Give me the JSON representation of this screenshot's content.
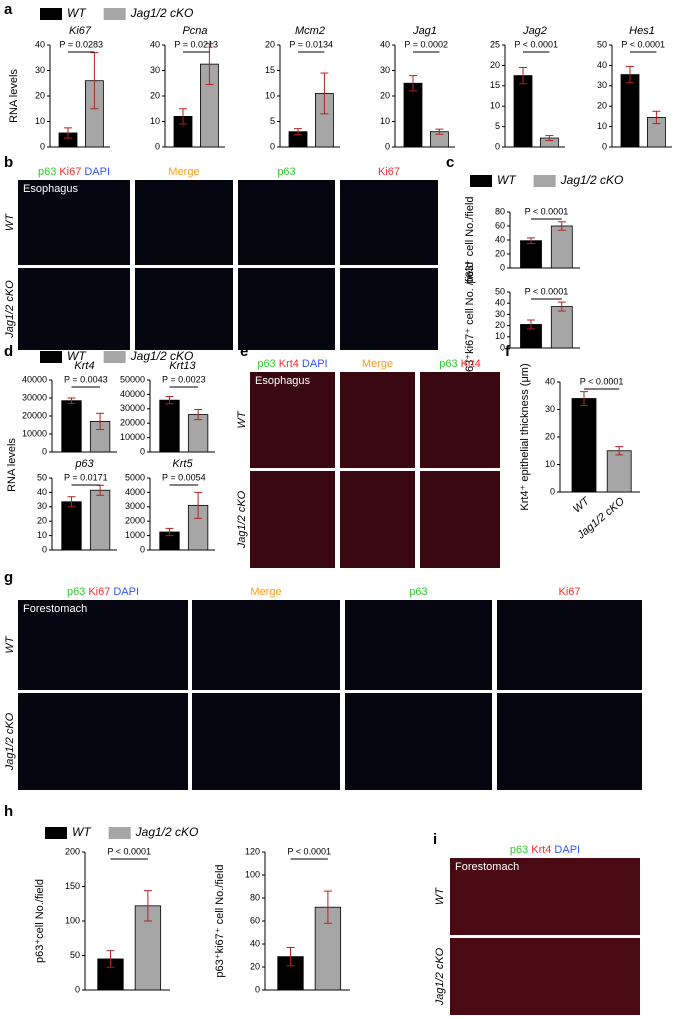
{
  "panel_labels": [
    "a",
    "b",
    "c",
    "d",
    "e",
    "f",
    "g",
    "h",
    "i"
  ],
  "legend": [
    {
      "name": "WT",
      "color": "#000000"
    },
    {
      "name": "Jag1/2 cKO",
      "color": "#a6a6a6"
    }
  ],
  "chart_data": [
    {
      "type": "bar",
      "title": "Ki67",
      "ylabel": "RNA levels",
      "values": [
        5.5,
        26
      ],
      "errors": [
        2,
        11
      ],
      "ylim": [
        0,
        40
      ],
      "yticks": [
        0,
        10,
        20,
        30,
        40
      ],
      "annotation": "P = 0.0283"
    },
    {
      "type": "bar",
      "title": "Pcna",
      "values": [
        12,
        32.5
      ],
      "errors": [
        3,
        8
      ],
      "ylim": [
        0,
        40
      ],
      "yticks": [
        0,
        10,
        20,
        30,
        40
      ],
      "annotation": "P = 0.0213"
    },
    {
      "type": "bar",
      "title": "Mcm2",
      "values": [
        3,
        10.5
      ],
      "errors": [
        0.6,
        4
      ],
      "ylim": [
        0,
        20
      ],
      "yticks": [
        0,
        5,
        10,
        15,
        20
      ],
      "annotation": "P = 0.0134"
    },
    {
      "type": "bar",
      "title": "Jag1",
      "values": [
        25,
        6
      ],
      "errors": [
        3,
        1
      ],
      "ylim": [
        0,
        40
      ],
      "yticks": [
        0,
        10,
        20,
        30,
        40
      ],
      "annotation": "P = 0.0002"
    },
    {
      "type": "bar",
      "title": "Jag2",
      "values": [
        17.5,
        2.2
      ],
      "errors": [
        2,
        0.6
      ],
      "ylim": [
        0,
        25
      ],
      "yticks": [
        0,
        5,
        10,
        15,
        20,
        25
      ],
      "annotation": "P < 0.0001"
    },
    {
      "type": "bar",
      "title": "Hes1",
      "values": [
        35.5,
        14.5
      ],
      "errors": [
        4,
        3
      ],
      "ylim": [
        0,
        50
      ],
      "yticks": [
        0,
        10,
        20,
        30,
        40,
        50
      ],
      "annotation": "P < 0.0001"
    },
    {
      "type": "bar",
      "ylabel": "p63⁺ cell No./field",
      "values": [
        39,
        60
      ],
      "errors": [
        4,
        6
      ],
      "ylim": [
        0,
        80
      ],
      "yticks": [
        0,
        20,
        40,
        60,
        80
      ],
      "annotation": "P < 0.0001"
    },
    {
      "type": "bar",
      "ylabel": "p63⁺ki67⁺ cell No. /field",
      "values": [
        21,
        37
      ],
      "errors": [
        4,
        4
      ],
      "ylim": [
        0,
        50
      ],
      "yticks": [
        0,
        10,
        20,
        30,
        40,
        50
      ],
      "annotation": "P < 0.0001"
    },
    {
      "type": "bar",
      "title": "Krt4",
      "ylabel": "RNA levels",
      "values": [
        28500,
        17000
      ],
      "errors": [
        1500,
        4500
      ],
      "ylim": [
        0,
        40000
      ],
      "yticks": [
        0,
        10000,
        20000,
        30000,
        40000
      ],
      "annotation": "P = 0.0043"
    },
    {
      "type": "bar",
      "title": "Krt13",
      "values": [
        36000,
        26000
      ],
      "errors": [
        2500,
        3500
      ],
      "ylim": [
        0,
        50000
      ],
      "yticks": [
        0,
        10000,
        20000,
        30000,
        40000,
        50000
      ],
      "annotation": "P = 0.0023"
    },
    {
      "type": "bar",
      "title": "p63",
      "values": [
        33.5,
        41.5
      ],
      "errors": [
        3.5,
        3.5
      ],
      "ylim": [
        0,
        50
      ],
      "yticks": [
        0,
        10,
        20,
        30,
        40,
        50
      ],
      "annotation": "P = 0.0171"
    },
    {
      "type": "bar",
      "title": "Krt5",
      "values": [
        1250,
        3100
      ],
      "errors": [
        250,
        900
      ],
      "ylim": [
        0,
        5000
      ],
      "yticks": [
        0,
        1000,
        2000,
        3000,
        4000,
        5000
      ],
      "annotation": "P = 0.0054"
    },
    {
      "type": "bar",
      "ylabel": "Krt4⁺ epithelial thickness (μm)",
      "categories": [
        "WT",
        "Jag1/2 cKO"
      ],
      "values": [
        34,
        15
      ],
      "errors": [
        2.5,
        1.5
      ],
      "ylim": [
        0,
        40
      ],
      "yticks": [
        0,
        10,
        20,
        30,
        40
      ],
      "annotation": "P < 0.0001"
    },
    {
      "type": "bar",
      "ylabel": "p63⁺cell No./field",
      "values": [
        45,
        122
      ],
      "errors": [
        12,
        22
      ],
      "ylim": [
        0,
        200
      ],
      "yticks": [
        0,
        50,
        100,
        150,
        200
      ],
      "annotation": "P < 0.0001"
    },
    {
      "type": "bar",
      "ylabel": "p63⁺ki67⁺ cell No./field",
      "values": [
        29,
        72
      ],
      "errors": [
        8,
        14
      ],
      "ylim": [
        0,
        120
      ],
      "yticks": [
        0,
        20,
        40,
        60,
        80,
        100,
        120
      ],
      "annotation": "P < 0.0001"
    }
  ],
  "micrographs": [
    {
      "stain": [
        {
          "text": "p63",
          "color": "#2ecc2e"
        },
        {
          "text": "Ki67",
          "color": "#ff2a2a"
        },
        {
          "text": "DAPI",
          "color": "#3355ff"
        }
      ],
      "tissue": "Esophagus",
      "columns": [
        [
          {
            "text": "Merge",
            "color": "#ff9a1a"
          }
        ],
        [
          {
            "text": "p63",
            "color": "#2ecc2e"
          }
        ],
        [
          {
            "text": "Ki67",
            "color": "#ff2a2a"
          }
        ]
      ],
      "rows": [
        "WT",
        "Jag1/2 cKO"
      ]
    },
    {
      "stain": [
        {
          "text": "p63",
          "color": "#2ecc2e"
        },
        {
          "text": "Krt4",
          "color": "#ff2a2a"
        },
        {
          "text": "DAPI",
          "color": "#3355ff"
        }
      ],
      "tissue": "Esophagus",
      "columns": [
        [
          {
            "text": "Merge",
            "color": "#ff9a1a"
          }
        ],
        [
          {
            "text": "p63",
            "color": "#2ecc2e"
          },
          {
            "text": "Krt4",
            "color": "#ff2a2a"
          }
        ]
      ],
      "rows": [
        "WT",
        "Jag1/2 cKO"
      ]
    },
    {
      "stain": [
        {
          "text": "p63",
          "color": "#2ecc2e"
        },
        {
          "text": "Ki67",
          "color": "#ff2a2a"
        },
        {
          "text": "DAPI",
          "color": "#3355ff"
        }
      ],
      "tissue": "Forestomach",
      "columns": [
        [
          {
            "text": "Merge",
            "color": "#ff9a1a"
          }
        ],
        [
          {
            "text": "p63",
            "color": "#2ecc2e"
          }
        ],
        [
          {
            "text": "Ki67",
            "color": "#ff2a2a"
          }
        ]
      ],
      "rows": [
        "WT",
        "Jag1/2 cKO"
      ]
    },
    {
      "stain": [
        {
          "text": "p63",
          "color": "#2ecc2e"
        },
        {
          "text": "Krt4",
          "color": "#ff2a2a"
        },
        {
          "text": "DAPI",
          "color": "#3355ff"
        }
      ],
      "tissue": "Forestomach",
      "columns": [],
      "rows": [
        "WT",
        "Jag1/2 cKO"
      ]
    }
  ]
}
